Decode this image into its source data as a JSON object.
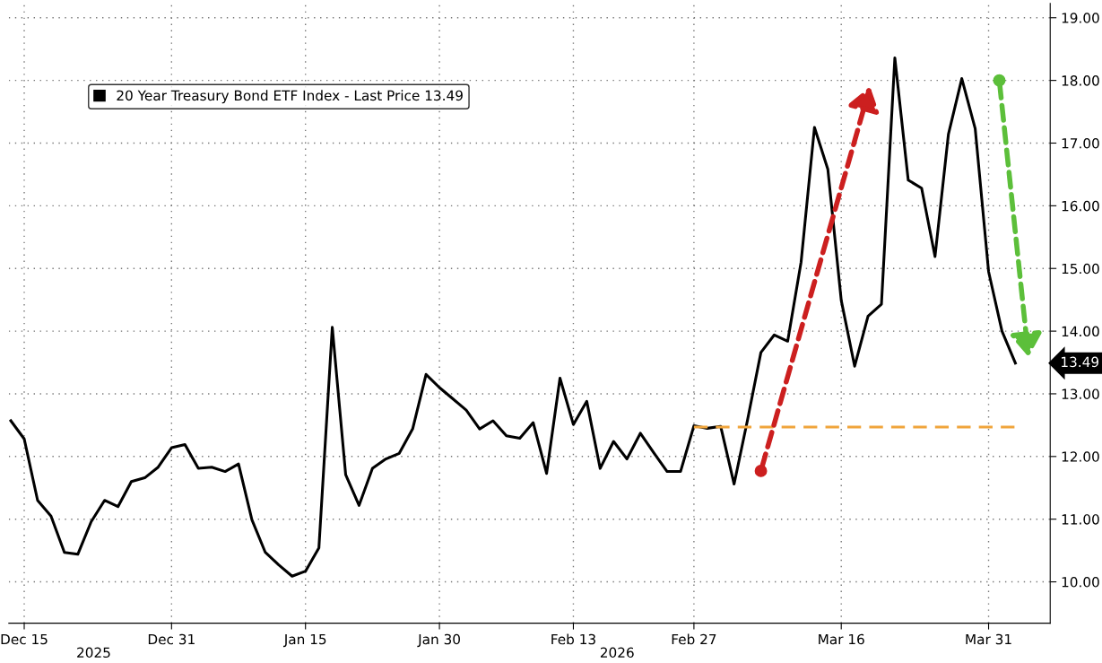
{
  "chart_data": {
    "type": "line",
    "categories": [
      null,
      "Dec 15",
      null,
      null,
      null,
      null,
      null,
      null,
      null,
      null,
      null,
      null,
      "Dec 31",
      null,
      null,
      null,
      null,
      null,
      null,
      null,
      null,
      null,
      "Jan 15",
      null,
      null,
      null,
      null,
      null,
      null,
      null,
      null,
      null,
      "Jan 30",
      null,
      null,
      null,
      null,
      null,
      null,
      null,
      null,
      null,
      "Feb 13",
      null,
      null,
      null,
      null,
      null,
      null,
      null,
      null,
      "Feb 27",
      null,
      null,
      null,
      null,
      null,
      null,
      null,
      null,
      null,
      null,
      "Mar 16",
      null,
      null,
      null,
      null,
      null,
      null,
      null,
      null,
      null,
      null,
      "Mar 31",
      null,
      null
    ],
    "series": [
      {
        "name": "20 Year Treasury Bond ETF Index - Last Price 13.49",
        "color": "#000000",
        "values": [
          12.57,
          12.28,
          11.3,
          11.05,
          10.47,
          10.44,
          10.96,
          11.3,
          11.2,
          11.6,
          11.66,
          11.83,
          12.14,
          12.19,
          11.81,
          11.83,
          11.76,
          11.88,
          10.99,
          10.47,
          10.27,
          10.09,
          10.17,
          10.54,
          14.06,
          11.71,
          11.22,
          11.81,
          11.96,
          12.05,
          12.44,
          13.31,
          13.1,
          12.92,
          12.74,
          12.44,
          12.57,
          12.33,
          12.29,
          12.54,
          11.73,
          13.25,
          12.51,
          12.88,
          11.81,
          12.24,
          11.96,
          12.37,
          12.06,
          11.76,
          11.76,
          12.49,
          12.45,
          12.48,
          11.56,
          12.58,
          13.66,
          13.94,
          13.84,
          15.1,
          17.25,
          16.58,
          14.49,
          13.44,
          14.24,
          14.43,
          18.36,
          16.41,
          16.28,
          15.19,
          17.14,
          18.03,
          17.23,
          14.95,
          14.0,
          13.49
        ]
      },
      {
        "color": "#f0a53c",
        "line_style": "dashed",
        "values": [
          null,
          null,
          null,
          null,
          null,
          null,
          null,
          null,
          null,
          null,
          null,
          null,
          null,
          null,
          null,
          null,
          null,
          null,
          null,
          null,
          null,
          null,
          null,
          null,
          null,
          null,
          null,
          null,
          null,
          null,
          null,
          null,
          null,
          null,
          null,
          null,
          null,
          null,
          null,
          null,
          null,
          null,
          null,
          null,
          null,
          null,
          null,
          null,
          null,
          null,
          null,
          12.47,
          12.47,
          12.47,
          12.47,
          12.47,
          12.47,
          12.47,
          12.47,
          12.47,
          12.47,
          12.47,
          12.47,
          12.47,
          12.47,
          12.47,
          12.47,
          12.47,
          12.47,
          12.47,
          12.47,
          12.47,
          12.47,
          12.47,
          12.47,
          12.47
        ]
      }
    ],
    "ylim": [
      9.34,
      19.23
    ],
    "yticks": [
      {
        "value": 10,
        "label": "10.00"
      },
      {
        "value": 11,
        "label": "11.00"
      },
      {
        "value": 12,
        "label": "12.00"
      },
      {
        "value": 13,
        "label": "13.00"
      },
      {
        "value": 14,
        "label": "14.00"
      },
      {
        "value": 15,
        "label": "15.00"
      },
      {
        "value": 16,
        "label": "16.00"
      },
      {
        "value": 17,
        "label": "17.00"
      },
      {
        "value": 18,
        "label": "18.00"
      },
      {
        "value": 19,
        "label": "19.00"
      }
    ],
    "annotations": [
      "13.49",
      "2025",
      "2026"
    ],
    "grid": true,
    "legend": "top left",
    "line_style": "solid",
    "marker": "none"
  }
}
